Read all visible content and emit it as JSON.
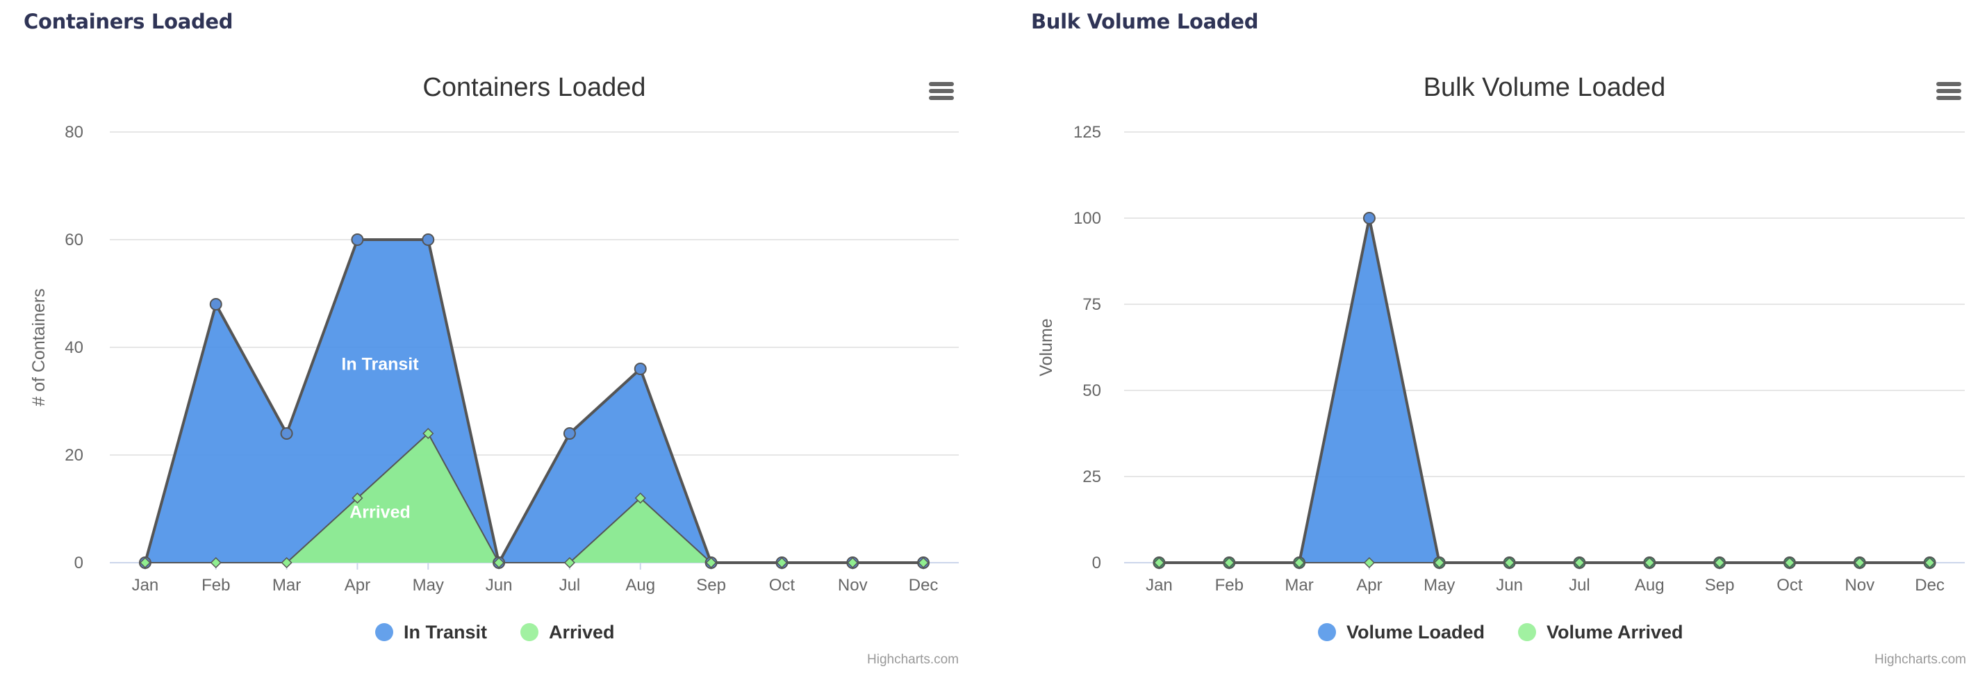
{
  "panels": [
    {
      "title": "Containers Loaded"
    },
    {
      "title": "Bulk Volume Loaded"
    }
  ],
  "credits": "Highcharts.com",
  "chart_data": [
    {
      "type": "area",
      "title": "Containers Loaded",
      "ylabel": "# of Containers",
      "xlabel": "",
      "categories": [
        "Jan",
        "Feb",
        "Mar",
        "Apr",
        "May",
        "Jun",
        "Jul",
        "Aug",
        "Sep",
        "Oct",
        "Nov",
        "Dec"
      ],
      "ylim": [
        0,
        80
      ],
      "yticks": [
        0,
        20,
        40,
        60,
        80
      ],
      "grid": true,
      "legend_placement": "bottom-center",
      "series": [
        {
          "name": "In Transit",
          "color": "#4a90e8",
          "marker": "circle",
          "values": [
            0,
            48,
            24,
            60,
            60,
            0,
            24,
            36,
            0,
            0,
            0,
            0
          ]
        },
        {
          "name": "Arrived",
          "color": "#90ee90",
          "marker": "diamond",
          "values": [
            0,
            0,
            0,
            12,
            24,
            0,
            0,
            12,
            0,
            0,
            0,
            0
          ]
        }
      ],
      "annotations": [
        {
          "text": "In Transit",
          "series": 0,
          "at_category": "Apr",
          "value": 37
        },
        {
          "text": "Arrived",
          "series": 1,
          "at_category": "Apr",
          "value": 9.5
        }
      ]
    },
    {
      "type": "area",
      "title": "Bulk Volume Loaded",
      "ylabel": "Volume",
      "xlabel": "",
      "categories": [
        "Jan",
        "Feb",
        "Mar",
        "Apr",
        "May",
        "Jun",
        "Jul",
        "Aug",
        "Sep",
        "Oct",
        "Nov",
        "Dec"
      ],
      "ylim": [
        0,
        125
      ],
      "yticks": [
        0,
        25,
        50,
        75,
        100,
        125
      ],
      "grid": true,
      "legend_placement": "bottom-center",
      "series": [
        {
          "name": "Volume Loaded",
          "color": "#4a90e8",
          "marker": "circle",
          "values": [
            0,
            0,
            0,
            100,
            0,
            0,
            0,
            0,
            0,
            0,
            0,
            0
          ]
        },
        {
          "name": "Volume Arrived",
          "color": "#90ee90",
          "marker": "diamond",
          "values": [
            0,
            0,
            0,
            0,
            0,
            0,
            0,
            0,
            0,
            0,
            0,
            0
          ]
        }
      ],
      "annotations": []
    }
  ]
}
